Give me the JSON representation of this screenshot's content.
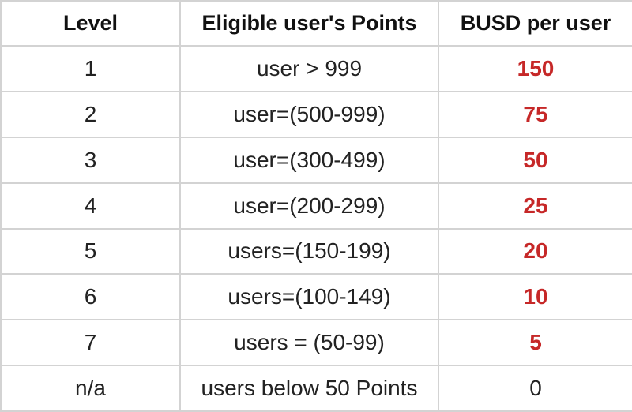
{
  "table": {
    "headers": [
      "Level",
      "Eligible user's Points",
      "BUSD per user"
    ],
    "rows": [
      {
        "level": "1",
        "points": "user > 999",
        "busd": "150",
        "highlight": true
      },
      {
        "level": "2",
        "points": "user=(500-999)",
        "busd": "75",
        "highlight": true
      },
      {
        "level": "3",
        "points": "user=(300-499)",
        "busd": "50",
        "highlight": true
      },
      {
        "level": "4",
        "points": "user=(200-299)",
        "busd": "25",
        "highlight": true
      },
      {
        "level": "5",
        "points": "users=(150-199)",
        "busd": "20",
        "highlight": true
      },
      {
        "level": "6",
        "points": "users=(100-149)",
        "busd": "10",
        "highlight": true
      },
      {
        "level": "7",
        "points": "users = (50-99)",
        "busd": "5",
        "highlight": true
      },
      {
        "level": "n/a",
        "points": "users below 50 Points",
        "busd": "0",
        "highlight": false
      }
    ]
  },
  "colors": {
    "highlight_value": "#c62828",
    "border": "#d3d3d3",
    "text": "#222222"
  }
}
